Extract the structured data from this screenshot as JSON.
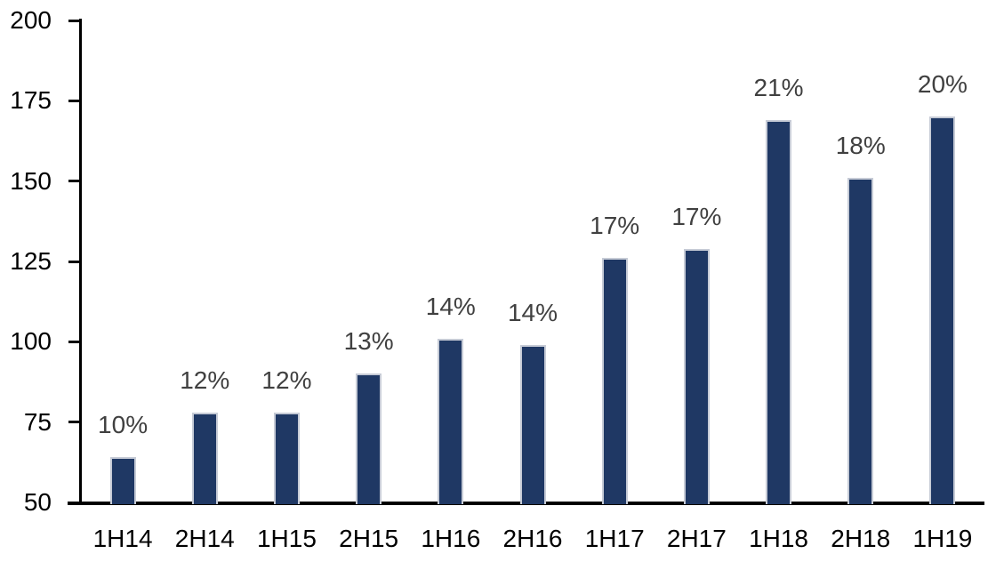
{
  "chart_data": {
    "type": "bar",
    "title": "",
    "xlabel": "",
    "ylabel": "",
    "categories": [
      "1H14",
      "2H14",
      "1H15",
      "2H15",
      "1H16",
      "2H16",
      "1H17",
      "2H17",
      "1H18",
      "2H18",
      "1H19"
    ],
    "values": [
      64,
      78,
      78,
      90,
      101,
      99,
      126,
      129,
      169,
      151,
      170
    ],
    "data_labels": [
      "10%",
      "12%",
      "12%",
      "13%",
      "14%",
      "14%",
      "17%",
      "17%",
      "21%",
      "18%",
      "20%"
    ],
    "ylim": [
      50,
      200
    ],
    "yticks": [
      "50",
      "75",
      "100",
      "125",
      "150",
      "175",
      "200"
    ],
    "grid": false,
    "legend": "none",
    "colors": {
      "bar_fill": "#1f3864",
      "bar_edge": "#c6cbd6",
      "axis": "#000000",
      "axis_label": "#000000",
      "data_label": "#404040",
      "background": "#ffffff"
    }
  }
}
